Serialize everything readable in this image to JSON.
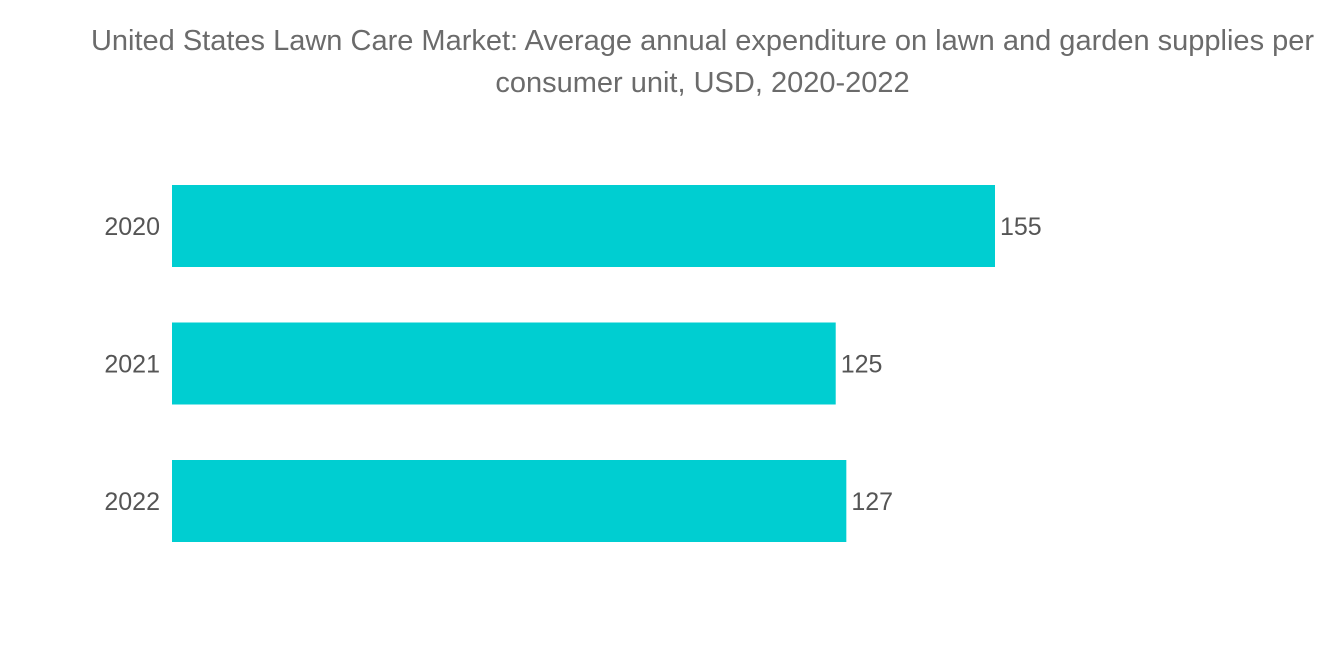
{
  "chart_data": {
    "type": "bar",
    "orientation": "horizontal",
    "title": "United States Lawn Care Market: Average annual expenditure on lawn and garden supplies per consumer unit, USD, 2020-2022",
    "categories": [
      "2020",
      "2021",
      "2022"
    ],
    "values": [
      155,
      125,
      127
    ],
    "data_labels": [
      "155",
      "125",
      "127"
    ],
    "xlabel": "",
    "ylabel": "",
    "xlim": [
      0,
      180
    ],
    "grid": false,
    "legend": "none",
    "bar_color": "#00CED1"
  }
}
